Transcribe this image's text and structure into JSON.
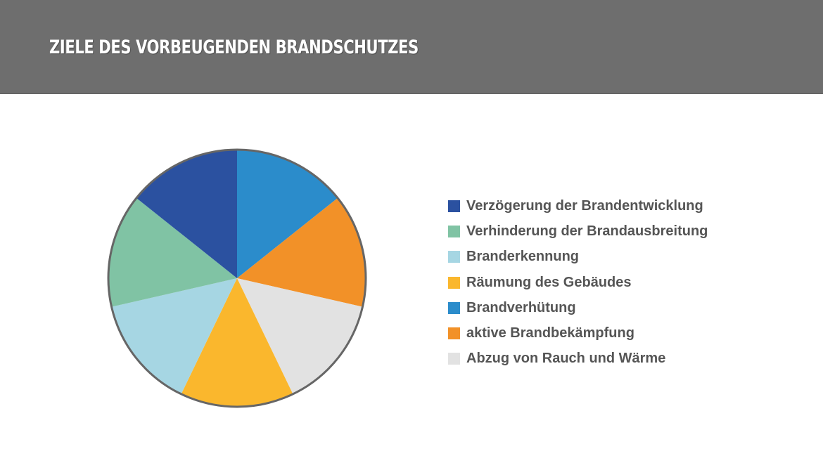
{
  "header": {
    "title": "ZIELE DES VORBEUGENDEN BRANDSCHUTZES"
  },
  "chart_data": {
    "type": "pie",
    "title": "ZIELE DES VORBEUGENDEN BRANDSCHUTZES",
    "start_angle_deg": 0,
    "direction": "clockwise",
    "slices": [
      {
        "label": "Brandverhütung",
        "value": 1,
        "color": "#2b8ccb"
      },
      {
        "label": "aktive Brandbekämpfung",
        "value": 1,
        "color": "#f29128"
      },
      {
        "label": "Abzug von Rauch und Wärme",
        "value": 1,
        "color": "#e2e2e2"
      },
      {
        "label": "Räumung des Gebäudes",
        "value": 1,
        "color": "#fab72d"
      },
      {
        "label": "Branderkennung",
        "value": 1,
        "color": "#a6d6e3"
      },
      {
        "label": "Verhinderung der Brandausbreitung",
        "value": 1,
        "color": "#80c3a4"
      },
      {
        "label": "Verzögerung der Brandentwicklung",
        "value": 1,
        "color": "#2b51a0"
      }
    ],
    "legend": [
      {
        "label": "Verzögerung der Brandentwicklung",
        "color": "#2b51a0"
      },
      {
        "label": "Verhinderung der Brandausbreitung",
        "color": "#80c3a4"
      },
      {
        "label": "Branderkennung",
        "color": "#a6d6e3"
      },
      {
        "label": "Räumung des Gebäudes",
        "color": "#fab72d"
      },
      {
        "label": "Brandverhütung",
        "color": "#2b8ccb"
      },
      {
        "label": "aktive Brandbekämpfung",
        "color": "#f29128"
      },
      {
        "label": "Abzug von Rauch und Wärme",
        "color": "#e2e2e2"
      }
    ],
    "legend_position": "right",
    "outline_color": "#666666"
  }
}
